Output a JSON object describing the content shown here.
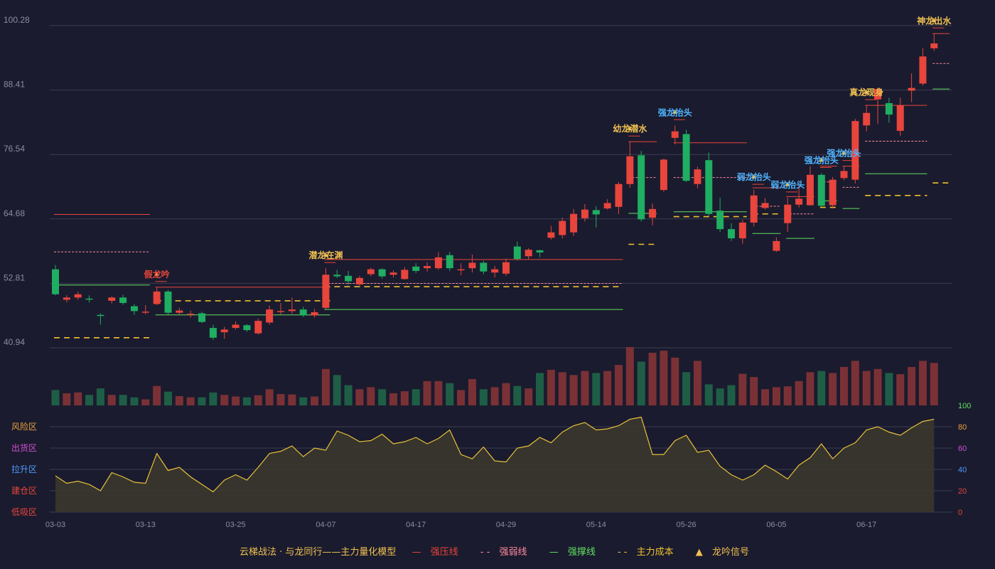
{
  "chart_data": {
    "type": "candlestick",
    "price_ticks": [
      "100.28",
      "88.41",
      "76.54",
      "64.68",
      "52.81",
      "40.94"
    ],
    "price_range": [
      40.94,
      100.28
    ],
    "x_labels": [
      "03-03",
      "03-13",
      "03-25",
      "04-07",
      "04-17",
      "04-29",
      "05-14",
      "05-26",
      "06-05",
      "06-17"
    ],
    "x_label_index": [
      0,
      8,
      16,
      24,
      32,
      40,
      48,
      56,
      64,
      72
    ],
    "colors": {
      "up": "#e8453c",
      "down": "#1fae62",
      "vol_up": "#7a3136",
      "vol_down": "#1e5e46",
      "osc": "#e8c13a",
      "bg": "#1a1b2e",
      "grid": "#3a3c52"
    },
    "candles": [
      [
        55.4,
        50.8,
        56.2,
        50.6
      ],
      [
        49.8,
        50.2,
        50.6,
        49.3
      ],
      [
        50.2,
        50.8,
        51.3,
        49.8
      ],
      [
        50.0,
        49.9,
        50.6,
        49.3
      ],
      [
        47.0,
        46.8,
        47.3,
        45.2
      ],
      [
        49.6,
        50.2,
        50.4,
        49.1
      ],
      [
        50.2,
        49.2,
        50.7,
        48.9
      ],
      [
        48.6,
        47.7,
        49.0,
        47.0
      ],
      [
        47.6,
        47.6,
        48.8,
        47.1
      ],
      [
        49.0,
        51.3,
        52.1,
        48.8
      ],
      [
        51.3,
        47.4,
        51.6,
        47.1
      ],
      [
        47.4,
        47.8,
        48.3,
        47.0
      ],
      [
        47.2,
        47.2,
        47.8,
        46.5
      ],
      [
        47.3,
        45.7,
        47.6,
        45.5
      ],
      [
        44.6,
        42.8,
        45.2,
        42.4
      ],
      [
        43.8,
        44.3,
        44.8,
        42.6
      ],
      [
        44.6,
        45.2,
        45.8,
        44.3
      ],
      [
        45.1,
        44.2,
        45.3,
        43.9
      ],
      [
        43.6,
        45.9,
        46.3,
        43.4
      ],
      [
        45.6,
        48.0,
        48.7,
        45.2
      ],
      [
        47.7,
        47.7,
        49.2,
        47.1
      ],
      [
        47.7,
        48.0,
        50.2,
        47.2
      ],
      [
        48.0,
        46.9,
        48.5,
        46.6
      ],
      [
        46.9,
        47.5,
        48.1,
        46.5
      ],
      [
        48.3,
        54.4,
        55.6,
        48.1
      ],
      [
        54.4,
        54.1,
        55.3,
        53.8
      ],
      [
        54.2,
        53.2,
        55.1,
        52.5
      ],
      [
        52.6,
        53.8,
        54.2,
        52.4
      ],
      [
        54.5,
        55.4,
        55.7,
        54.1
      ],
      [
        55.4,
        54.1,
        55.6,
        53.7
      ],
      [
        54.4,
        54.8,
        55.2,
        53.9
      ],
      [
        53.6,
        55.3,
        55.8,
        53.5
      ],
      [
        55.9,
        55.1,
        56.5,
        54.7
      ],
      [
        55.6,
        56.0,
        56.7,
        55.0
      ],
      [
        55.6,
        57.6,
        58.6,
        55.3
      ],
      [
        58.0,
        55.6,
        58.6,
        55.1
      ],
      [
        55.4,
        55.4,
        56.5,
        54.3
      ],
      [
        55.6,
        56.6,
        58.1,
        54.8
      ],
      [
        56.6,
        55.0,
        57.0,
        54.5
      ],
      [
        54.8,
        55.4,
        56.0,
        53.9
      ],
      [
        54.6,
        56.7,
        57.4,
        54.2
      ],
      [
        59.6,
        57.3,
        60.5,
        57.0
      ],
      [
        57.8,
        59.0,
        59.3,
        57.2
      ],
      [
        58.9,
        58.5,
        59.0,
        57.6
      ],
      [
        61.2,
        62.2,
        63.4,
        60.9
      ],
      [
        61.7,
        64.3,
        64.9,
        61.1
      ],
      [
        62.2,
        65.6,
        66.5,
        61.5
      ],
      [
        64.8,
        66.4,
        67.4,
        64.2
      ],
      [
        66.3,
        65.5,
        67.0,
        63.1
      ],
      [
        66.6,
        67.6,
        68.3,
        66.4
      ],
      [
        66.9,
        71.1,
        71.5,
        65.6
      ],
      [
        71.1,
        76.2,
        78.9,
        70.4
      ],
      [
        76.4,
        64.6,
        77.2,
        64.2
      ],
      [
        64.9,
        66.5,
        67.5,
        63.5
      ],
      [
        70.0,
        75.6,
        75.8,
        69.7
      ],
      [
        79.6,
        80.8,
        81.9,
        78.4
      ],
      [
        80.3,
        71.7,
        81.1,
        71.5
      ],
      [
        71.1,
        73.8,
        74.3,
        70.3
      ],
      [
        75.5,
        65.6,
        76.9,
        65.2
      ],
      [
        66.2,
        62.8,
        68.6,
        62.3
      ],
      [
        62.8,
        61.1,
        63.9,
        60.6
      ],
      [
        61.1,
        64.0,
        64.5,
        60.1
      ],
      [
        64.0,
        69.0,
        70.0,
        63.3
      ],
      [
        66.7,
        67.6,
        68.5,
        66.4
      ],
      [
        58.8,
        60.6,
        61.3,
        58.6
      ],
      [
        63.9,
        67.3,
        68.6,
        62.3
      ],
      [
        67.3,
        68.4,
        70.8,
        66.8
      ],
      [
        67.2,
        72.8,
        74.4,
        67.1
      ],
      [
        72.8,
        67.1,
        73.1,
        66.9
      ],
      [
        67.2,
        71.9,
        72.4,
        66.6
      ],
      [
        72.2,
        73.5,
        74.4,
        71.8
      ],
      [
        71.9,
        82.7,
        83.1,
        71.2
      ],
      [
        81.9,
        84.2,
        85.6,
        80.8
      ],
      [
        86.7,
        88.6,
        88.9,
        82.2
      ],
      [
        86.0,
        83.9,
        87.0,
        82.4
      ],
      [
        80.9,
        85.6,
        87.0,
        80.0
      ],
      [
        88.3,
        88.8,
        91.5,
        86.2
      ],
      [
        89.6,
        94.6,
        96.1,
        89.2
      ],
      [
        96.1,
        97.0,
        98.8,
        95.6
      ]
    ],
    "volume": [
      38,
      30,
      32,
      26,
      42,
      26,
      26,
      20,
      15,
      48,
      34,
      23,
      20,
      20,
      32,
      26,
      22,
      20,
      25,
      40,
      28,
      27,
      20,
      22,
      90,
      75,
      50,
      40,
      45,
      40,
      30,
      35,
      40,
      60,
      60,
      55,
      38,
      65,
      40,
      45,
      55,
      48,
      42,
      80,
      88,
      82,
      75,
      85,
      80,
      85,
      100,
      144,
      108,
      130,
      135,
      118,
      82,
      110,
      52,
      42,
      50,
      78,
      70,
      40,
      45,
      47,
      60,
      82,
      85,
      80,
      95,
      110,
      85,
      90,
      80,
      77,
      95,
      110,
      105
    ],
    "oscillator_ticks": [
      "100",
      "80",
      "60",
      "40",
      "20",
      "0"
    ],
    "oscillator_range": [
      0,
      100
    ],
    "oscillator_zones": [
      "风险区",
      "出货区",
      "拉升区",
      "建仓区",
      "低吸区"
    ],
    "oscillator": [
      34,
      27,
      29,
      26,
      20,
      37,
      33,
      28,
      27,
      55,
      39,
      42,
      33,
      26,
      19,
      30,
      35,
      30,
      42,
      55,
      57,
      62,
      52,
      60,
      58,
      76,
      72,
      66,
      67,
      73,
      64,
      66,
      70,
      64,
      69,
      77,
      54,
      50,
      61,
      48,
      47,
      60,
      62,
      70,
      65,
      75,
      81,
      84,
      77,
      78,
      81,
      87,
      89,
      54,
      54,
      67,
      72,
      56,
      58,
      43,
      35,
      30,
      35,
      44,
      38,
      31,
      44,
      51,
      64,
      50,
      60,
      65,
      77,
      80,
      75,
      72,
      79,
      85,
      87
    ],
    "signals": [
      {
        "i": 9,
        "text": "假龙吟",
        "color": "#e8453c"
      },
      {
        "i": 24,
        "text": "潜龙在渊",
        "color": "#f0c050"
      },
      {
        "i": 51,
        "text": "幼龙潜水",
        "color": "#f0c050"
      },
      {
        "i": 55,
        "text": "强龙抬头",
        "color": "#4fb4ff"
      },
      {
        "i": 62,
        "text": "弱龙抬头",
        "color": "#4fb4ff"
      },
      {
        "i": 65,
        "text": "弱龙抬头",
        "color": "#4fb4ff"
      },
      {
        "i": 68,
        "text": "强龙抬头",
        "color": "#4fb4ff"
      },
      {
        "i": 70,
        "text": "强龙抬头",
        "color": "#4fb4ff"
      },
      {
        "i": 72,
        "text": "真龙现身",
        "color": "#f0c050"
      },
      {
        "i": 78,
        "text": "神龙出水",
        "color": "#f0c050"
      }
    ],
    "segments": [
      {
        "kind": "pressure",
        "from": 0,
        "to": 8,
        "price": 65.5
      },
      {
        "kind": "weak",
        "from": 0,
        "to": 8,
        "price": 58.6
      },
      {
        "kind": "support",
        "from": 0,
        "to": 8,
        "price": 52.5
      },
      {
        "kind": "cost",
        "from": 0,
        "to": 8,
        "price": 42.8
      },
      {
        "kind": "pressure",
        "from": 9,
        "to": 24,
        "price": 52.1
      },
      {
        "kind": "cost",
        "from": 9,
        "to": 24,
        "price": 49.6
      },
      {
        "kind": "support",
        "from": 9,
        "to": 24,
        "price": 47.0
      },
      {
        "kind": "support",
        "from": 24,
        "to": 50,
        "price": 48.0
      },
      {
        "kind": "pressure",
        "from": 24,
        "to": 50,
        "price": 57.2
      },
      {
        "kind": "weak",
        "from": 24,
        "to": 50,
        "price": 52.8
      },
      {
        "kind": "cost",
        "from": 24,
        "to": 50,
        "price": 52.2
      },
      {
        "kind": "pressure",
        "from": 51,
        "to": 53,
        "price": 78.9
      },
      {
        "kind": "weak",
        "from": 51,
        "to": 53,
        "price": 72.3
      },
      {
        "kind": "support",
        "from": 51,
        "to": 53,
        "price": 65.7
      },
      {
        "kind": "cost",
        "from": 51,
        "to": 53,
        "price": 60.0
      },
      {
        "kind": "pressure",
        "from": 55,
        "to": 61,
        "price": 78.7
      },
      {
        "kind": "weak",
        "from": 55,
        "to": 61,
        "price": 72.3
      },
      {
        "kind": "support",
        "from": 55,
        "to": 61,
        "price": 66.0
      },
      {
        "kind": "cost",
        "from": 55,
        "to": 61,
        "price": 65.1
      },
      {
        "kind": "pressure",
        "from": 62,
        "to": 64,
        "price": 70.4
      },
      {
        "kind": "weak",
        "from": 62,
        "to": 64,
        "price": 67.0
      },
      {
        "kind": "support",
        "from": 62,
        "to": 64,
        "price": 62.0
      },
      {
        "kind": "cost",
        "from": 62,
        "to": 64,
        "price": 65.6
      },
      {
        "kind": "pressure",
        "from": 65,
        "to": 67,
        "price": 68.8
      },
      {
        "kind": "weak",
        "from": 65,
        "to": 67,
        "price": 65.6
      },
      {
        "kind": "support",
        "from": 65,
        "to": 67,
        "price": 61.1
      },
      {
        "kind": "pressure",
        "from": 68,
        "to": 69,
        "price": 74.4
      },
      {
        "kind": "weak",
        "from": 68,
        "to": 69,
        "price": 71.5
      },
      {
        "kind": "support",
        "from": 68,
        "to": 69,
        "price": 68.0
      },
      {
        "kind": "cost",
        "from": 68,
        "to": 69,
        "price": 66.8
      },
      {
        "kind": "pressure",
        "from": 70,
        "to": 71,
        "price": 74.4
      },
      {
        "kind": "weak",
        "from": 70,
        "to": 71,
        "price": 70.5
      },
      {
        "kind": "support",
        "from": 70,
        "to": 71,
        "price": 66.6
      },
      {
        "kind": "pressure",
        "from": 72,
        "to": 77,
        "price": 85.6
      },
      {
        "kind": "weak",
        "from": 72,
        "to": 77,
        "price": 79.0
      },
      {
        "kind": "support",
        "from": 72,
        "to": 77,
        "price": 73.0
      },
      {
        "kind": "cost",
        "from": 72,
        "to": 77,
        "price": 69.0
      },
      {
        "kind": "pressure",
        "from": 78,
        "to": 79,
        "price": 98.8
      },
      {
        "kind": "weak",
        "from": 78,
        "to": 79,
        "price": 93.3
      },
      {
        "kind": "support",
        "from": 78,
        "to": 79,
        "price": 88.6
      },
      {
        "kind": "cost",
        "from": 78,
        "to": 79,
        "price": 71.3
      }
    ],
    "line_colors": {
      "pressure": "#e8453c",
      "weak": "#ff8aa0",
      "support": "#62e062",
      "cost": "#f0c030"
    }
  },
  "legend": {
    "title": "云梯战法 · 与龙同行——主力量化模型",
    "pressure": "强压线",
    "weak": "强弱线",
    "support": "强撑线",
    "cost": "主力成本",
    "signal": "龙吟信号"
  }
}
